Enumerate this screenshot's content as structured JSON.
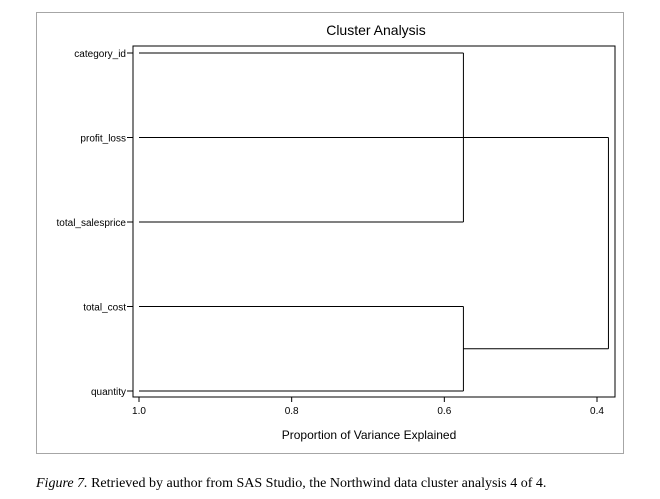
{
  "chart_data": {
    "type": "dendrogram",
    "title": "Cluster Analysis",
    "xlabel": "Proportion of Variance Explained",
    "x_ticks": [
      1.0,
      0.8,
      0.6,
      0.4
    ],
    "x_tick_labels": [
      "1.0",
      "0.8",
      "0.6",
      "0.4"
    ],
    "xlim": [
      1.0,
      0.38
    ],
    "leaves": [
      "category_id",
      "profit_loss",
      "total_salesprice",
      "total_cost",
      "quantity"
    ],
    "merges": [
      {
        "left": "category_id",
        "right": "total_salesprice",
        "height": 0.575,
        "members": [
          "category_id",
          "profit_loss",
          "total_salesprice"
        ]
      },
      {
        "left": "total_cost",
        "right": "quantity",
        "height": 0.575,
        "members": [
          "total_cost",
          "quantity"
        ]
      },
      {
        "left": "cluster_1",
        "right": "cluster_2",
        "height": 0.385,
        "members": [
          "category_id",
          "profit_loss",
          "total_salesprice",
          "total_cost",
          "quantity"
        ]
      }
    ]
  },
  "caption": {
    "figure_label": "Figure 7.",
    "text": " Retrieved by author from SAS Studio, the Northwind data cluster analysis 4 of 4."
  },
  "colors": {
    "line": "#000000",
    "frame": "#a6a6a6"
  }
}
